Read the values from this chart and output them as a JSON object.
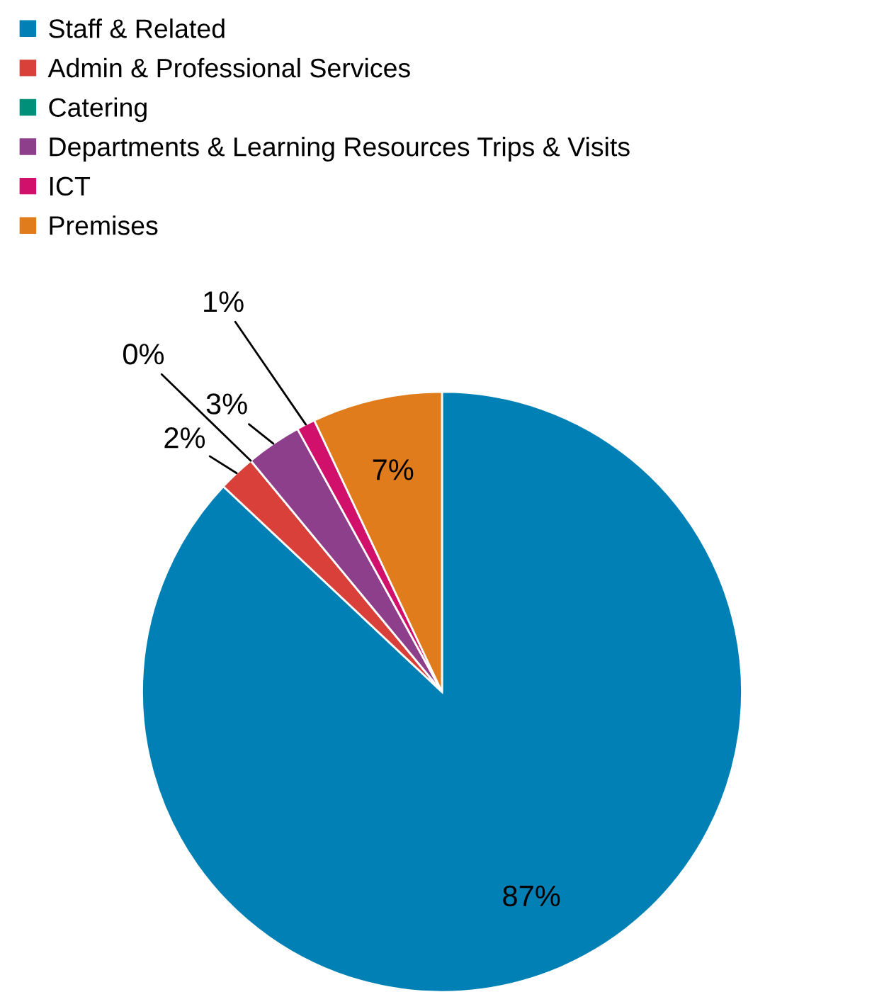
{
  "chart_data": {
    "type": "pie",
    "categories": [
      "Staff & Related",
      "Admin & Professional Services",
      "Catering",
      "Departments & Learning Resources Trips & Visits",
      "ICT",
      "Premises"
    ],
    "values": [
      87,
      2,
      0,
      3,
      1,
      7
    ],
    "colors": [
      "#0080b4",
      "#d9403a",
      "#00907a",
      "#8e3f8c",
      "#d0106b",
      "#e07c1c"
    ],
    "value_labels": [
      "87%",
      "2%",
      "0%",
      "3%",
      "1%",
      "7%"
    ],
    "legend": "top"
  }
}
